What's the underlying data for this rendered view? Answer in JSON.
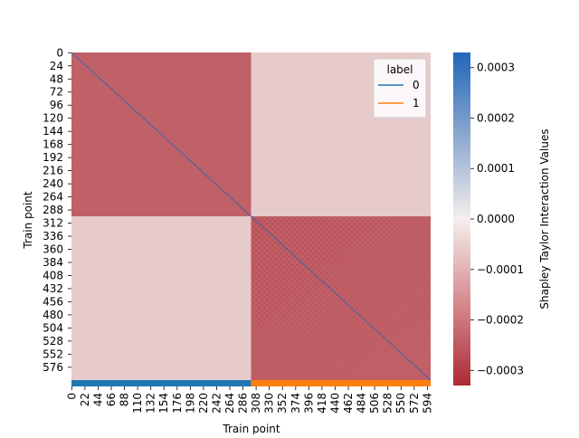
{
  "chart_data": {
    "type": "heatmap",
    "title": "",
    "xlabel": "Train point",
    "ylabel": "Train point",
    "x_ticks": [
      "0",
      "22",
      "44",
      "66",
      "88",
      "110",
      "132",
      "154",
      "176",
      "198",
      "220",
      "242",
      "264",
      "286",
      "308",
      "330",
      "352",
      "374",
      "396",
      "418",
      "440",
      "462",
      "484",
      "506",
      "528",
      "550",
      "572",
      "594"
    ],
    "y_ticks": [
      "0",
      "24",
      "48",
      "72",
      "96",
      "120",
      "144",
      "168",
      "192",
      "216",
      "240",
      "264",
      "288",
      "312",
      "336",
      "360",
      "384",
      "408",
      "432",
      "456",
      "480",
      "504",
      "528",
      "552",
      "576"
    ],
    "n_points": 600,
    "class_split": 300,
    "blocks": [
      {
        "rows": "0-299",
        "cols": "0-299",
        "approx_value": -0.00024
      },
      {
        "rows": "0-299",
        "cols": "300-599",
        "approx_value": -6e-05
      },
      {
        "rows": "300-599",
        "cols": "0-299",
        "approx_value": -6e-05
      },
      {
        "rows": "300-599",
        "cols": "300-599",
        "approx_value": -0.00024
      }
    ],
    "diagonal_value": 0.00033,
    "colorbar": {
      "label": "Shapley Taylor Interaction Values",
      "ticks": [
        "0.0003",
        "0.0002",
        "0.0001",
        "0.0000",
        "−0.0001",
        "−0.0002",
        "−0.0003"
      ],
      "range": [
        -0.00033,
        0.00033
      ],
      "colormap": "vlag_r",
      "colors": {
        "high": "#2066b8",
        "mid": "#f4efed",
        "low": "#ad2a35"
      }
    },
    "legend": {
      "title": "label",
      "placement": "top-right",
      "entries": [
        {
          "label": "0",
          "color": "#1f77b4"
        },
        {
          "label": "1",
          "color": "#ff7f0e"
        }
      ]
    },
    "label_strip_colors": {
      "0": "#1f77b4",
      "1": "#ff7f0e"
    }
  }
}
